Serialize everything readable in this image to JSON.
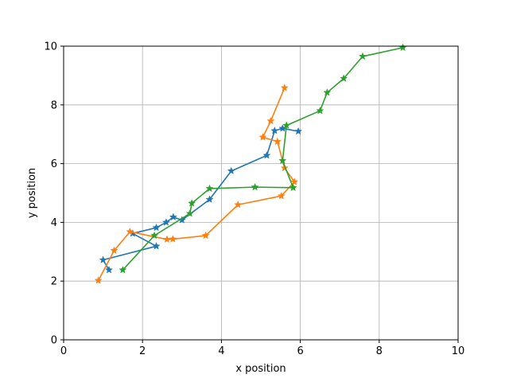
{
  "chart_data": {
    "type": "line",
    "xlabel": "x position",
    "ylabel": "y position",
    "xlim": [
      0,
      10
    ],
    "ylim": [
      0,
      10
    ],
    "xticks": [
      0,
      2,
      4,
      6,
      8,
      10
    ],
    "yticks": [
      0,
      2,
      4,
      6,
      8,
      10
    ],
    "grid": true,
    "marker": "star",
    "series": [
      {
        "color": "#1f77b4",
        "points": [
          [
            1.15,
            2.38
          ],
          [
            1.0,
            2.72
          ],
          [
            2.35,
            3.19
          ],
          [
            1.75,
            3.62
          ],
          [
            2.35,
            3.82
          ],
          [
            2.6,
            4.0
          ],
          [
            2.78,
            4.18
          ],
          [
            3.0,
            4.08
          ],
          [
            3.7,
            4.78
          ],
          [
            4.25,
            5.75
          ],
          [
            5.15,
            6.28
          ],
          [
            5.35,
            7.12
          ],
          [
            5.55,
            7.2
          ],
          [
            5.95,
            7.1
          ]
        ]
      },
      {
        "color": "#ff7f0e",
        "points": [
          [
            0.88,
            2.02
          ],
          [
            1.28,
            3.04
          ],
          [
            1.68,
            3.68
          ],
          [
            2.62,
            3.42
          ],
          [
            2.77,
            3.43
          ],
          [
            3.6,
            3.55
          ],
          [
            4.42,
            4.6
          ],
          [
            5.52,
            4.9
          ],
          [
            5.85,
            5.38
          ],
          [
            5.6,
            5.85
          ],
          [
            5.42,
            6.75
          ],
          [
            5.05,
            6.9
          ],
          [
            5.25,
            7.45
          ],
          [
            5.6,
            8.58
          ]
        ]
      },
      {
        "color": "#2ca02c",
        "points": [
          [
            1.5,
            2.38
          ],
          [
            2.3,
            3.55
          ],
          [
            3.2,
            4.3
          ],
          [
            3.25,
            4.65
          ],
          [
            3.7,
            5.15
          ],
          [
            4.85,
            5.2
          ],
          [
            5.82,
            5.18
          ],
          [
            5.55,
            6.1
          ],
          [
            5.65,
            7.3
          ],
          [
            6.5,
            7.8
          ],
          [
            6.68,
            8.42
          ],
          [
            7.1,
            8.9
          ],
          [
            7.58,
            9.65
          ],
          [
            8.6,
            9.95
          ]
        ]
      }
    ]
  }
}
